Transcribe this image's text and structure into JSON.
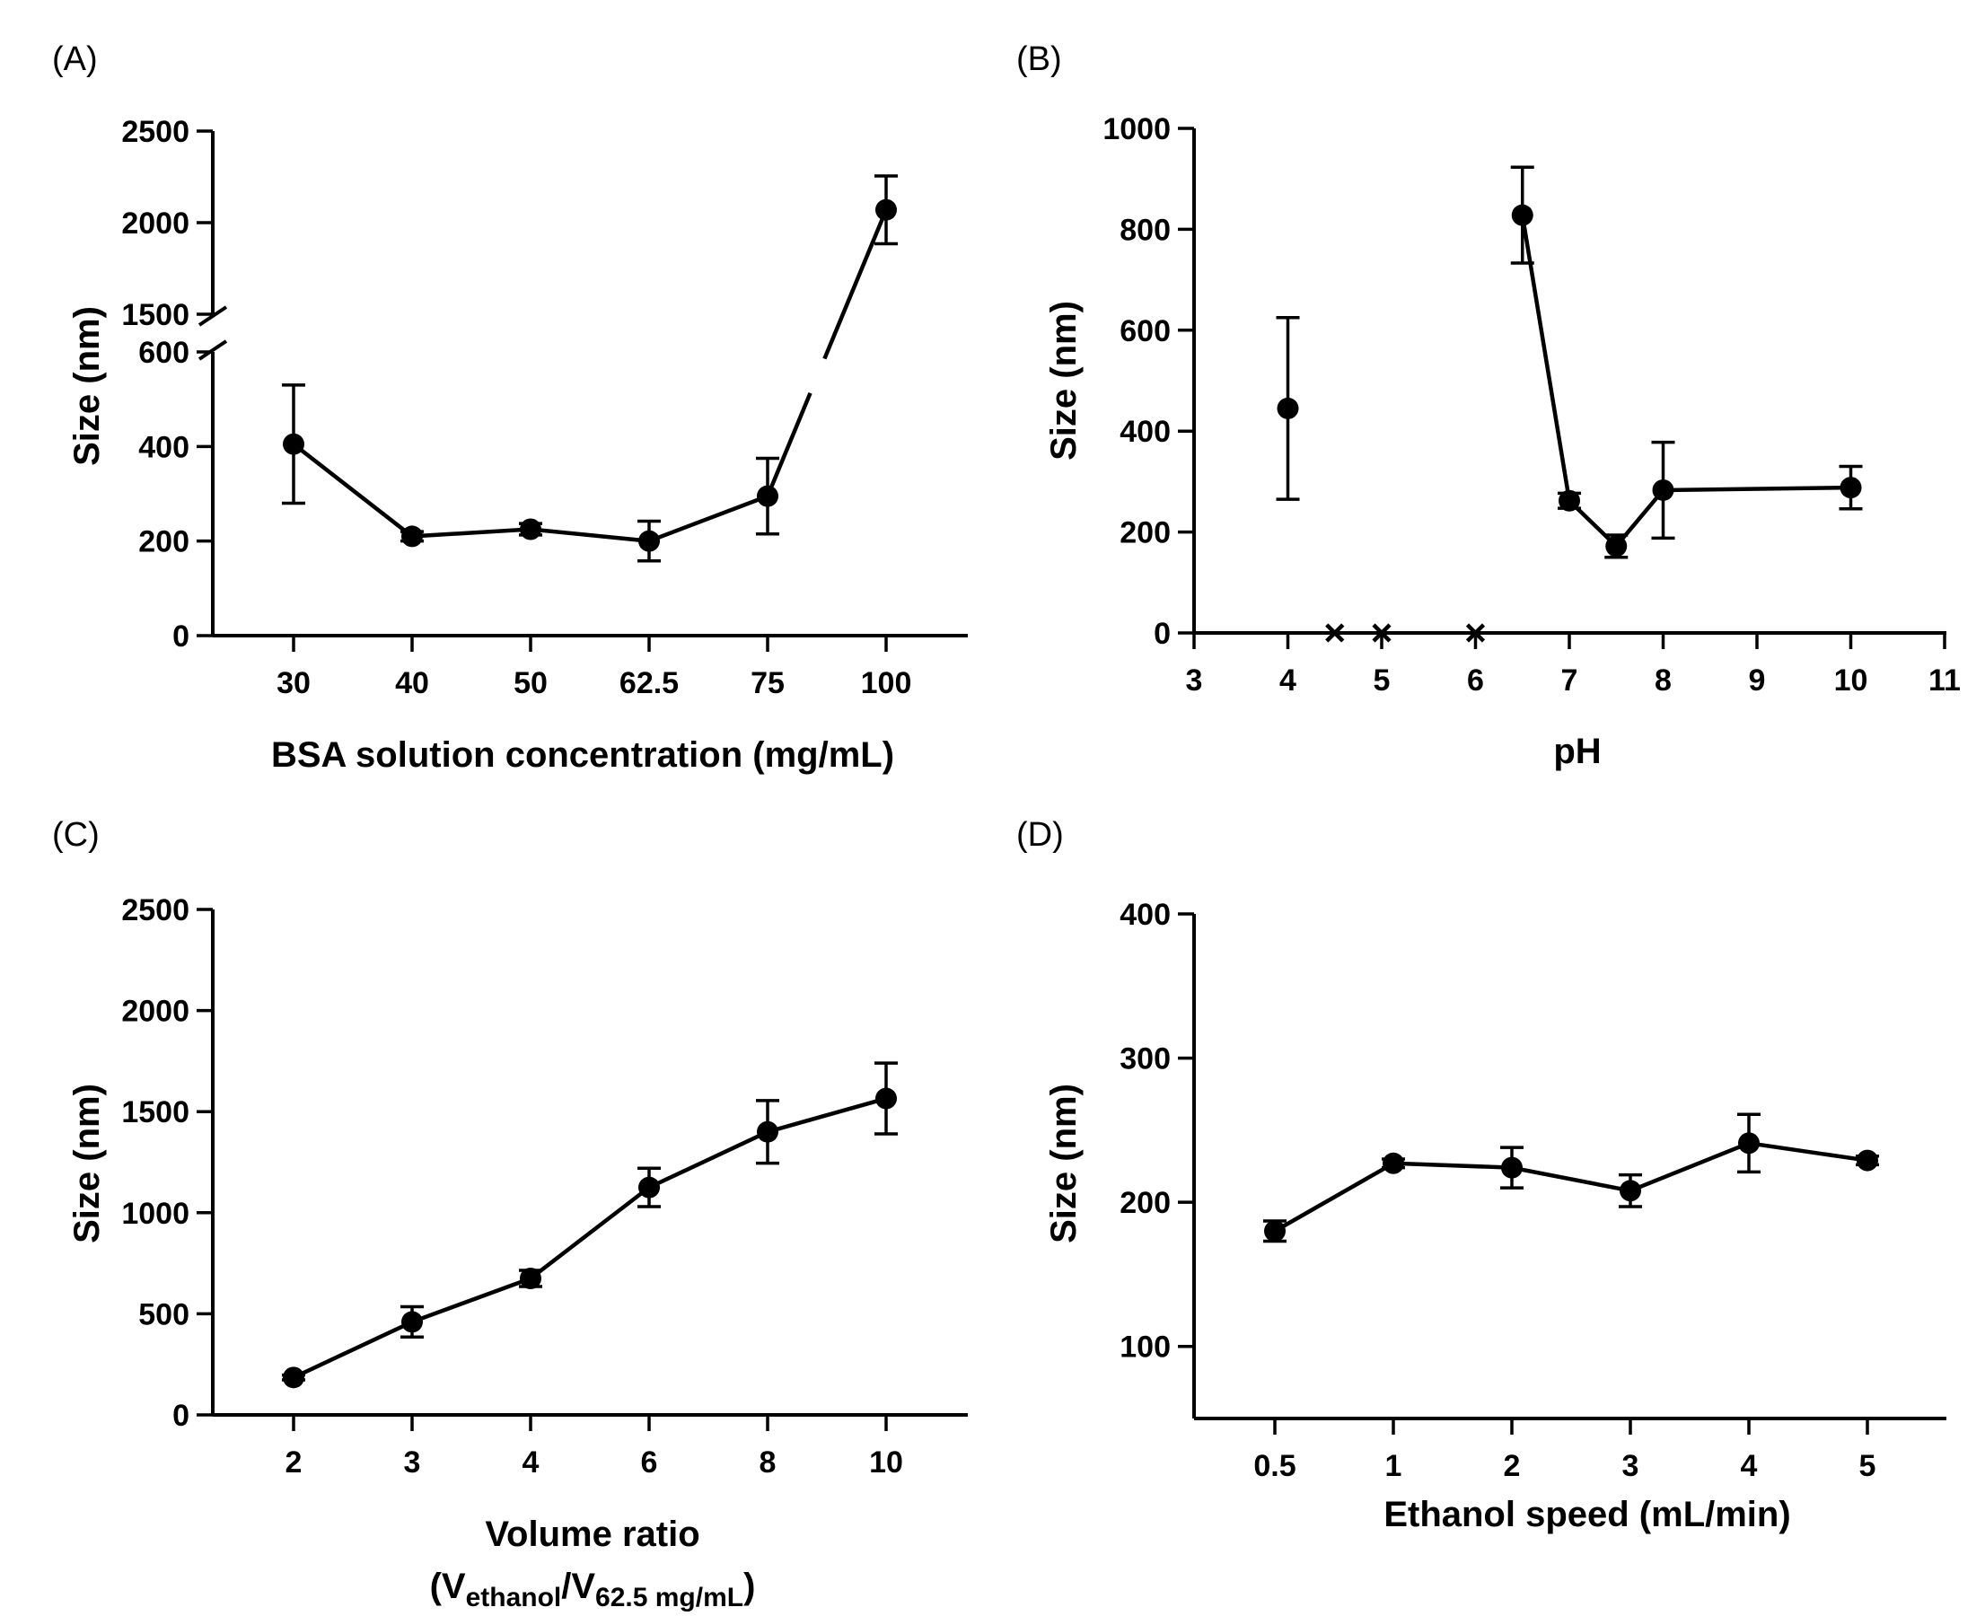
{
  "chart_data": [
    {
      "panel": "(A)",
      "type": "line",
      "xlabel": "BSA solution concentration (mg/mL)",
      "ylabel": "Size (nm)",
      "categories": [
        "30",
        "40",
        "50",
        "62.5",
        "75",
        "100"
      ],
      "values": [
        405,
        210,
        225,
        200,
        295,
        2070
      ],
      "errors": [
        125,
        10,
        12,
        42,
        80,
        185
      ],
      "y_break": {
        "lower_range": [
          0,
          600
        ],
        "upper_range": [
          1500,
          2500
        ]
      },
      "yticks": [
        "0",
        "200",
        "400",
        "600",
        "1500",
        "2000",
        "2500"
      ]
    },
    {
      "panel": "(B)",
      "type": "line",
      "xlabel": "pH",
      "ylabel": "Size (nm)",
      "xlim": [
        3,
        11
      ],
      "ylim": [
        0,
        1000
      ],
      "xticks": [
        "3",
        "4",
        "5",
        "6",
        "7",
        "8",
        "9",
        "10",
        "11"
      ],
      "yticks": [
        "0",
        "200",
        "400",
        "600",
        "800",
        "1000"
      ],
      "points": [
        {
          "x": 4,
          "y": 445,
          "err": 180,
          "connected": false
        },
        {
          "x": 6.5,
          "y": 828,
          "err": 95,
          "connected": true
        },
        {
          "x": 7,
          "y": 262,
          "err": 15,
          "connected": true
        },
        {
          "x": 7.5,
          "y": 172,
          "err": 22,
          "connected": true
        },
        {
          "x": 8,
          "y": 283,
          "err": 95,
          "connected": true
        },
        {
          "x": 10,
          "y": 288,
          "err": 42,
          "connected": true
        }
      ],
      "no_particle_markers": [
        4.5,
        5,
        6
      ]
    },
    {
      "panel": "(C)",
      "type": "line",
      "xlabel": "Volume ratio",
      "xlabel_line2": {
        "open": "(V",
        "sub1": "ethanol",
        "mid": "/V",
        "sub2": "62.5 mg/mL",
        "close": ")"
      },
      "ylabel": "Size (nm)",
      "categories": [
        "2",
        "3",
        "4",
        "6",
        "8",
        "10"
      ],
      "values": [
        185,
        460,
        675,
        1125,
        1400,
        1565
      ],
      "errors": [
        12,
        75,
        40,
        95,
        155,
        175
      ],
      "ylim": [
        0,
        2500
      ],
      "yticks": [
        "0",
        "500",
        "1000",
        "1500",
        "2000",
        "2500"
      ]
    },
    {
      "panel": "(D)",
      "type": "line",
      "xlabel": "Ethanol speed (mL/min)",
      "ylabel": "Size (nm)",
      "categories": [
        "0.5",
        "1",
        "2",
        "3",
        "4",
        "5"
      ],
      "values": [
        180,
        227,
        224,
        208,
        241,
        229
      ],
      "errors": [
        7,
        3,
        14,
        11,
        20,
        3
      ],
      "ylim": [
        50,
        400
      ],
      "yticks": [
        "100",
        "200",
        "300",
        "400"
      ]
    }
  ]
}
